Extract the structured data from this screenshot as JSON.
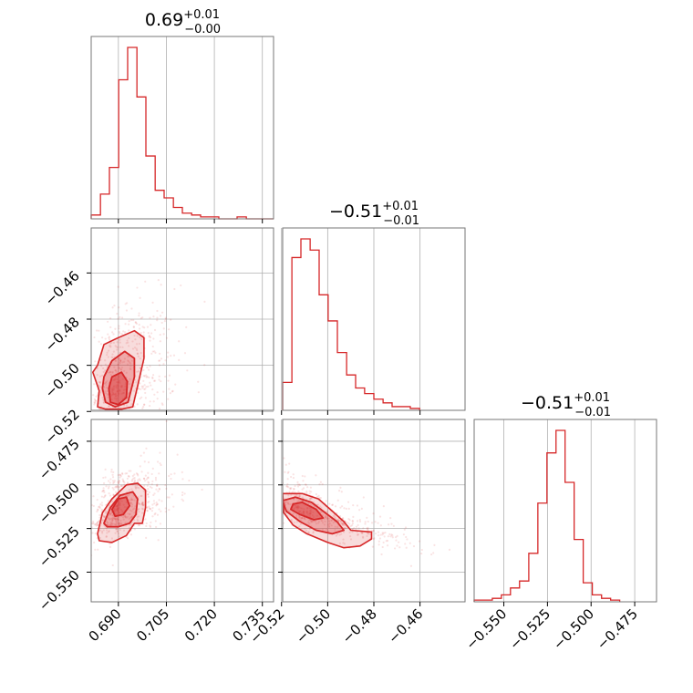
{
  "chart_data": {
    "type": "corner",
    "parameters": [
      {
        "id": "p1",
        "title": {
          "median": "0.69",
          "plus": "+0.01",
          "minus": "−0.00"
        },
        "range": [
          0.6815,
          0.7385
        ],
        "ticks": [
          {
            "v": 0.69,
            "label": "0.690"
          },
          {
            "v": 0.705,
            "label": "0.705"
          },
          {
            "v": 0.72,
            "label": "0.720"
          },
          {
            "v": 0.735,
            "label": "0.735"
          }
        ],
        "hist": {
          "edges": [
            0.6815,
            0.6844,
            0.6872,
            0.6901,
            0.6929,
            0.6958,
            0.6986,
            0.7015,
            0.7043,
            0.7072,
            0.71,
            0.7129,
            0.7157,
            0.7186,
            0.7214,
            0.7243,
            0.7271,
            0.73,
            0.7328,
            0.7357,
            0.7385
          ],
          "counts": [
            2,
            13,
            27,
            73,
            90,
            64,
            33,
            15,
            11,
            6,
            3,
            2,
            1,
            1,
            0,
            0,
            1,
            0,
            0,
            0
          ]
        }
      },
      {
        "id": "p2",
        "title": {
          "median": "−0.51",
          "plus": "+0.01",
          "minus": "−0.01"
        },
        "range": [
          -0.5195,
          -0.4405
        ],
        "ticks": [
          {
            "v": -0.52,
            "label": "−0.52"
          },
          {
            "v": -0.5,
            "label": "−0.50"
          },
          {
            "v": -0.48,
            "label": "−0.48"
          },
          {
            "v": -0.46,
            "label": "−0.46"
          }
        ],
        "hist": {
          "edges": [
            -0.5195,
            -0.5155,
            -0.5116,
            -0.5076,
            -0.5037,
            -0.4998,
            -0.4958,
            -0.4918,
            -0.4879,
            -0.484,
            -0.48,
            -0.476,
            -0.4721,
            -0.4681,
            -0.4642,
            -0.4602
          ],
          "counts": [
            15,
            82,
            92,
            86,
            62,
            48,
            31,
            19,
            12,
            9,
            6,
            4,
            2,
            2,
            1
          ]
        }
      },
      {
        "id": "p3",
        "title": {
          "median": "−0.51",
          "plus": "+0.01",
          "minus": "−0.01"
        },
        "range": [
          -0.567,
          -0.4625
        ],
        "ticks": [
          {
            "v": -0.55,
            "label": "−0.550"
          },
          {
            "v": -0.525,
            "label": "−0.525"
          },
          {
            "v": -0.5,
            "label": "−0.500"
          },
          {
            "v": -0.475,
            "label": "−0.475"
          }
        ],
        "hist": {
          "edges": [
            -0.567,
            -0.5618,
            -0.5566,
            -0.5514,
            -0.5462,
            -0.541,
            -0.5357,
            -0.5305,
            -0.5253,
            -0.5201,
            -0.5149,
            -0.5097,
            -0.5045,
            -0.4993,
            -0.494,
            -0.4888,
            -0.4836
          ],
          "counts": [
            1,
            1,
            2,
            4,
            8,
            12,
            28,
            57,
            86,
            99,
            69,
            36,
            11,
            4,
            2,
            1
          ]
        }
      }
    ],
    "pairs": [
      {
        "x": "p1",
        "y": "p2",
        "center": [
          0.6905,
          -0.507
        ],
        "spread": [
          0.0055,
          0.013
        ],
        "corr": 0.25,
        "contours": [
          [
            [
              0.6835,
              -0.5
            ],
            [
              0.6855,
              -0.491
            ],
            [
              0.69,
              -0.488
            ],
            [
              0.695,
              -0.485
            ],
            [
              0.698,
              -0.488
            ],
            [
              0.698,
              -0.497
            ],
            [
              0.696,
              -0.509
            ],
            [
              0.6945,
              -0.518
            ],
            [
              0.691,
              -0.519
            ],
            [
              0.686,
              -0.519
            ],
            [
              0.6835,
              -0.518
            ],
            [
              0.684,
              -0.511
            ],
            [
              0.682,
              -0.503
            ]
          ],
          [
            [
              0.6855,
              -0.505
            ],
            [
              0.688,
              -0.498
            ],
            [
              0.692,
              -0.494
            ],
            [
              0.695,
              -0.497
            ],
            [
              0.695,
              -0.505
            ],
            [
              0.693,
              -0.516
            ],
            [
              0.689,
              -0.518
            ],
            [
              0.686,
              -0.516
            ],
            [
              0.685,
              -0.51
            ]
          ],
          [
            [
              0.687,
              -0.51
            ],
            [
              0.688,
              -0.505
            ],
            [
              0.691,
              -0.503
            ],
            [
              0.6928,
              -0.507
            ],
            [
              0.6925,
              -0.514
            ],
            [
              0.69,
              -0.517
            ],
            [
              0.6875,
              -0.516
            ]
          ]
        ]
      },
      {
        "x": "p1",
        "y": "p3",
        "center": [
          0.6905,
          -0.513
        ],
        "spread": [
          0.0055,
          0.01
        ],
        "corr": 0.45,
        "contours": [
          [
            [
              0.6835,
              -0.528
            ],
            [
              0.685,
              -0.516
            ],
            [
              0.688,
              -0.508
            ],
            [
              0.6925,
              -0.5
            ],
            [
              0.696,
              -0.499
            ],
            [
              0.6985,
              -0.503
            ],
            [
              0.6985,
              -0.513
            ],
            [
              0.6975,
              -0.522
            ],
            [
              0.695,
              -0.522
            ],
            [
              0.6925,
              -0.529
            ],
            [
              0.688,
              -0.533
            ],
            [
              0.684,
              -0.532
            ]
          ],
          [
            [
              0.6855,
              -0.522
            ],
            [
              0.6875,
              -0.513
            ],
            [
              0.6905,
              -0.506
            ],
            [
              0.6945,
              -0.504
            ],
            [
              0.696,
              -0.508
            ],
            [
              0.6955,
              -0.517
            ],
            [
              0.6935,
              -0.522
            ],
            [
              0.69,
              -0.524
            ],
            [
              0.6865,
              -0.524
            ]
          ],
          [
            [
              0.688,
              -0.514
            ],
            [
              0.69,
              -0.508
            ],
            [
              0.6925,
              -0.507
            ],
            [
              0.6935,
              -0.512
            ],
            [
              0.6915,
              -0.517
            ],
            [
              0.689,
              -0.518
            ]
          ]
        ]
      },
      {
        "x": "p2",
        "y": "p3",
        "center": [
          -0.507,
          -0.516
        ],
        "spread": [
          0.013,
          0.01
        ],
        "corr": -0.8,
        "contours": [
          [
            [
              -0.5195,
              -0.505
            ],
            [
              -0.511,
              -0.505
            ],
            [
              -0.504,
              -0.508
            ],
            [
              -0.498,
              -0.515
            ],
            [
              -0.493,
              -0.521
            ],
            [
              -0.49,
              -0.526
            ],
            [
              -0.481,
              -0.527
            ],
            [
              -0.481,
              -0.531
            ],
            [
              -0.486,
              -0.535
            ],
            [
              -0.493,
              -0.536
            ],
            [
              -0.5,
              -0.533
            ],
            [
              -0.509,
              -0.528
            ],
            [
              -0.515,
              -0.523
            ],
            [
              -0.519,
              -0.516
            ]
          ],
          [
            [
              -0.5195,
              -0.509
            ],
            [
              -0.514,
              -0.507
            ],
            [
              -0.507,
              -0.51
            ],
            [
              -0.502,
              -0.515
            ],
            [
              -0.496,
              -0.521
            ],
            [
              -0.493,
              -0.526
            ],
            [
              -0.498,
              -0.528
            ],
            [
              -0.505,
              -0.526
            ],
            [
              -0.512,
              -0.521
            ],
            [
              -0.518,
              -0.515
            ]
          ],
          [
            [
              -0.515,
              -0.511
            ],
            [
              -0.511,
              -0.51
            ],
            [
              -0.505,
              -0.514
            ],
            [
              -0.502,
              -0.519
            ],
            [
              -0.506,
              -0.52
            ],
            [
              -0.512,
              -0.517
            ],
            [
              -0.516,
              -0.514
            ]
          ]
        ]
      }
    ]
  }
}
